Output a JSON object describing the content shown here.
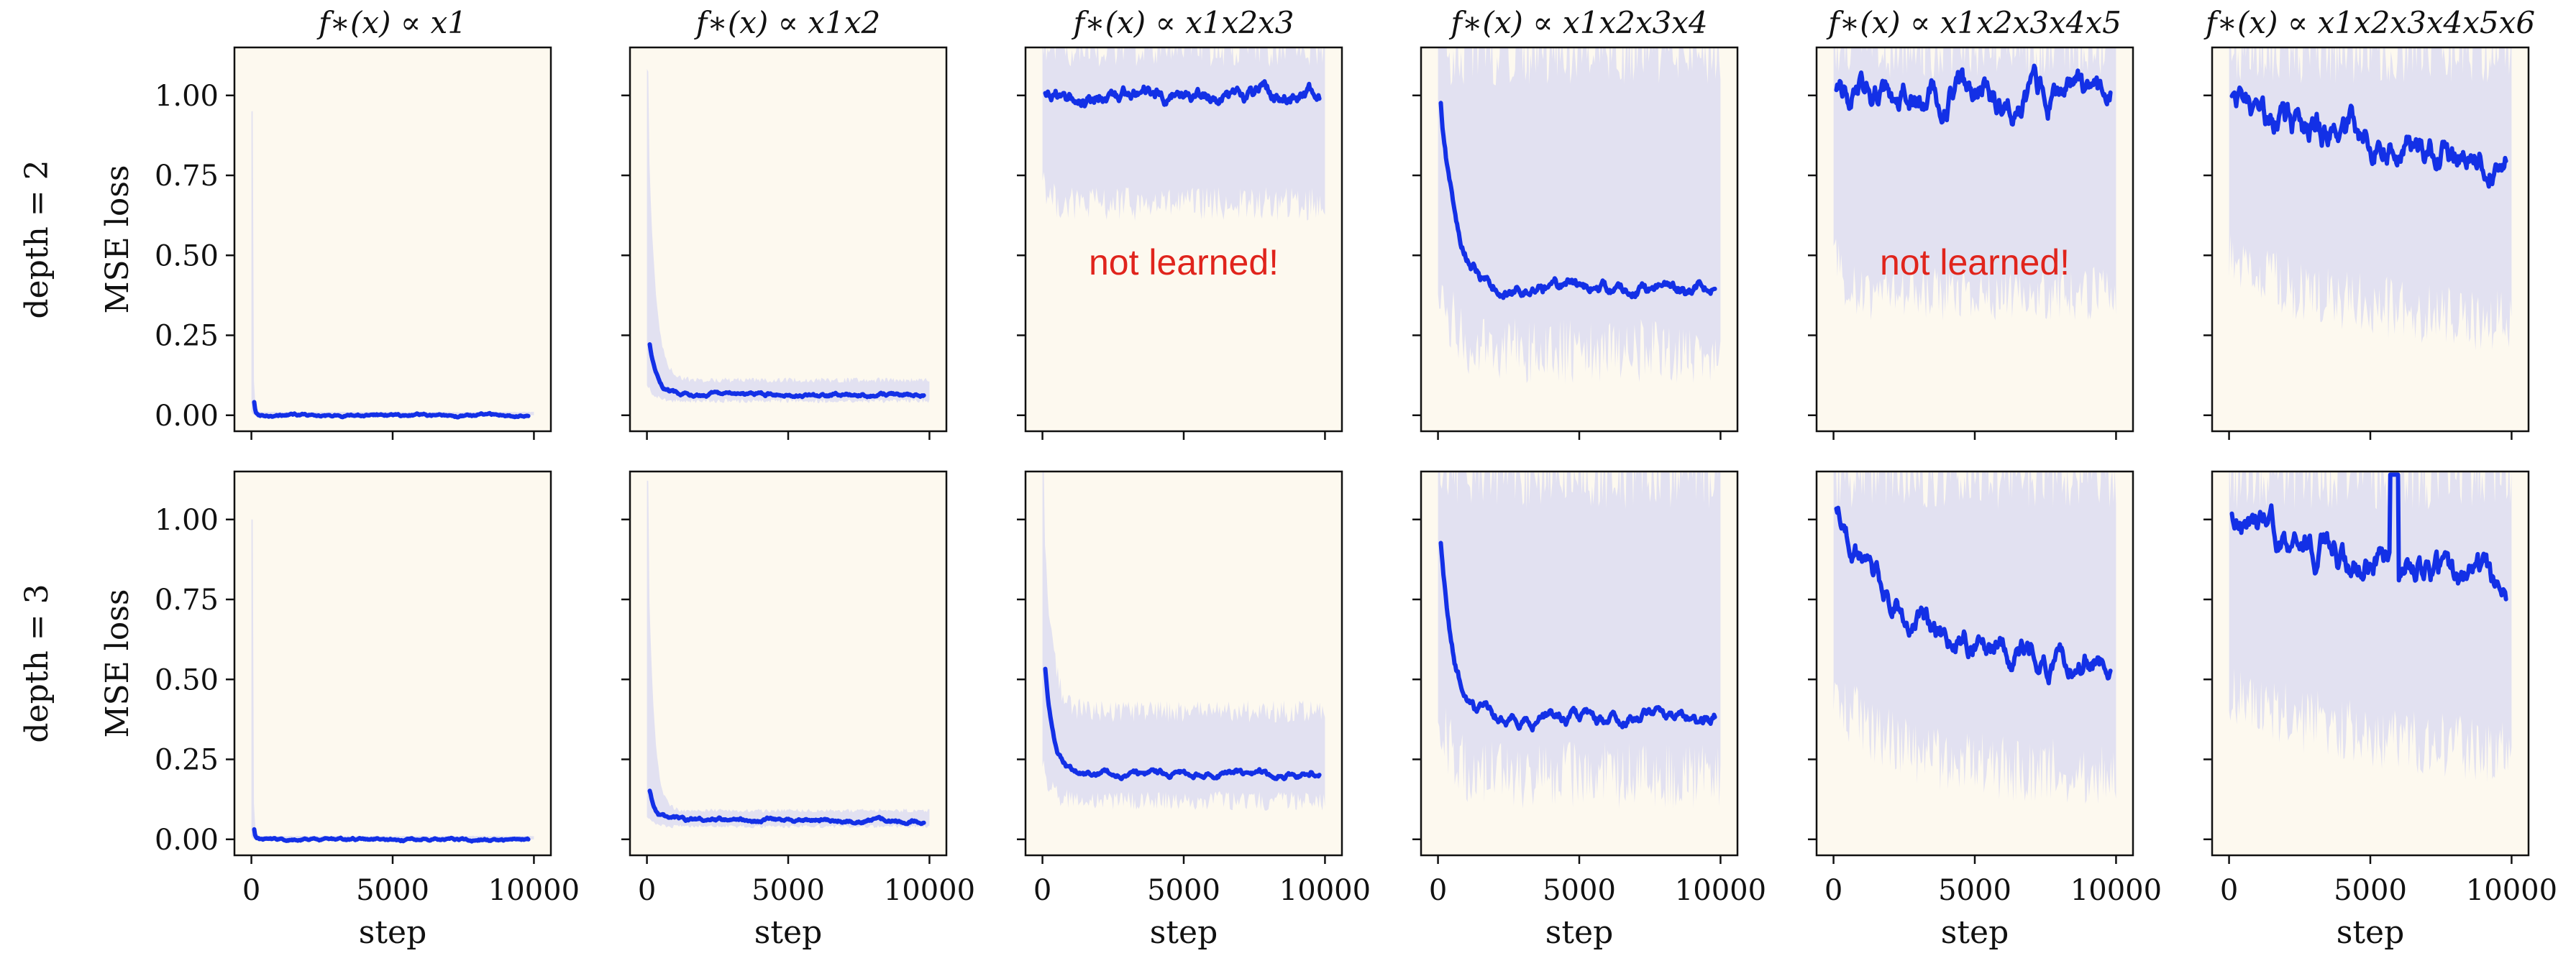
{
  "colors": {
    "panel_background": "#fdf9ef",
    "band": "#e2e1f1",
    "line": "#1330e6",
    "annotation": "#e0241c",
    "axes": "#111111"
  },
  "row_labels": [
    "depth = 2",
    "depth = 3"
  ],
  "chart_data": {
    "type": "line",
    "layout": "2x6 grid of small multiples",
    "titles": [
      "f∗(x) ∝ x1",
      "f∗(x) ∝ x1x2",
      "f∗(x) ∝ x1x2x3",
      "f∗(x) ∝ x1x2x3x4",
      "f∗(x) ∝ x1x2x3x4x5",
      "f∗(x) ∝ x1x2x3x4x5x6"
    ],
    "xlabel": "step",
    "ylabel": "MSE loss",
    "xlim": [
      -600,
      10600
    ],
    "ylim": [
      -0.05,
      1.15
    ],
    "xticks": [
      0,
      5000,
      10000
    ],
    "yticks": [
      0.0,
      0.25,
      0.5,
      0.75,
      1.0
    ],
    "ytick_labels": [
      "0.00",
      "0.25",
      "0.50",
      "0.75",
      "1.00"
    ],
    "grid": false,
    "x_range_data": [
      0,
      10000
    ],
    "panels": [
      [
        {
          "start": 0.04,
          "plateau": 0.0,
          "decay": 40,
          "noise": 0.002,
          "band_low": 0.0,
          "band_high": 0.01,
          "band_spike": 0.95
        },
        {
          "start": 0.22,
          "plateau": 0.065,
          "decay": 250,
          "noise": 0.003,
          "band_low": 0.045,
          "band_high": 0.11,
          "band_spike": 1.08
        },
        {
          "start": 1.0,
          "plateau": 1.0,
          "decay": 200,
          "noise": 0.012,
          "band_low": 0.66,
          "band_high": 1.15,
          "band_spike": 1.15,
          "annotation": "not learned!"
        },
        {
          "start": 0.97,
          "plateau": 0.395,
          "decay": 550,
          "noise": 0.01,
          "band_low": 0.2,
          "band_high": 1.15,
          "band_spike": 1.15
        },
        {
          "start": 1.0,
          "plateau": 1.0,
          "decay": 200,
          "noise": 0.025,
          "band_low": 0.38,
          "band_high": 1.15,
          "band_spike": 1.15,
          "annotation": "not learned!"
        },
        {
          "start": 0.98,
          "plateau": 0.77,
          "decay": 6000,
          "noise": 0.025,
          "band_low": 0.25,
          "band_high": 1.15,
          "band_spike": 1.15
        }
      ],
      [
        {
          "start": 0.03,
          "plateau": 0.0,
          "decay": 40,
          "noise": 0.002,
          "band_low": 0.0,
          "band_high": 0.01,
          "band_spike": 1.0
        },
        {
          "start": 0.15,
          "plateau": 0.06,
          "decay": 200,
          "noise": 0.003,
          "band_low": 0.04,
          "band_high": 0.09,
          "band_spike": 1.12
        },
        {
          "start": 0.53,
          "plateau": 0.205,
          "decay": 280,
          "noise": 0.005,
          "band_low": 0.12,
          "band_high": 0.4,
          "band_spike": 1.15
        },
        {
          "start": 0.92,
          "plateau": 0.38,
          "decay": 450,
          "noise": 0.01,
          "band_low": 0.2,
          "band_high": 1.15,
          "band_spike": 1.15
        },
        {
          "start": 1.02,
          "plateau": 0.54,
          "decay": 2500,
          "noise": 0.02,
          "band_low": 0.2,
          "band_high": 1.15,
          "band_spike": 1.15
        },
        {
          "start": 1.0,
          "plateau": 0.72,
          "decay": 8000,
          "noise": 0.025,
          "band_low": 0.2,
          "band_high": 1.15,
          "band_spike": 1.15,
          "spike": {
            "x0": 5700,
            "x1": 6000,
            "value": 1.14
          }
        }
      ]
    ]
  }
}
